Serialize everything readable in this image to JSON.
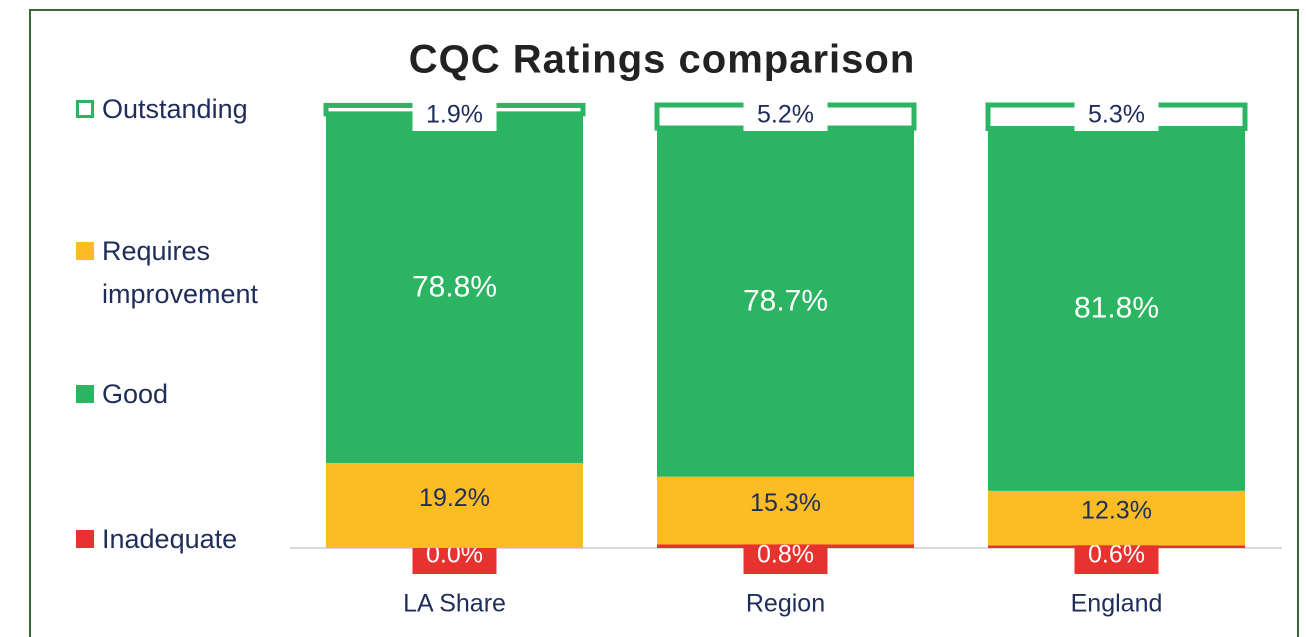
{
  "chart_data": {
    "type": "stacked_bar",
    "title": "CQC Ratings comparison",
    "categories": [
      "LA Share",
      "Region",
      "England"
    ],
    "series": [
      {
        "name": "Inadequate",
        "color": "#e8322f",
        "values": [
          0.0,
          0.8,
          0.6
        ],
        "value_labels": [
          "0.0%",
          "0.8%",
          "0.6%"
        ]
      },
      {
        "name": "Requires improvement",
        "color": "#fbbc24",
        "values": [
          19.2,
          15.3,
          12.3
        ],
        "value_labels": [
          "19.2%",
          "15.3%",
          "12.3%"
        ]
      },
      {
        "name": "Good",
        "color": "#2bb461",
        "values": [
          78.8,
          78.7,
          81.8
        ],
        "value_labels": [
          "78.8%",
          "78.7%",
          "81.8%"
        ]
      },
      {
        "name": "Outstanding",
        "color": "#ffffff",
        "edgecolor": "#2bb461",
        "values": [
          1.9,
          5.2,
          5.3
        ],
        "value_labels": [
          "1.9%",
          "5.2%",
          "5.3%"
        ]
      }
    ],
    "ylim": [
      0,
      100
    ],
    "legend": "left"
  }
}
